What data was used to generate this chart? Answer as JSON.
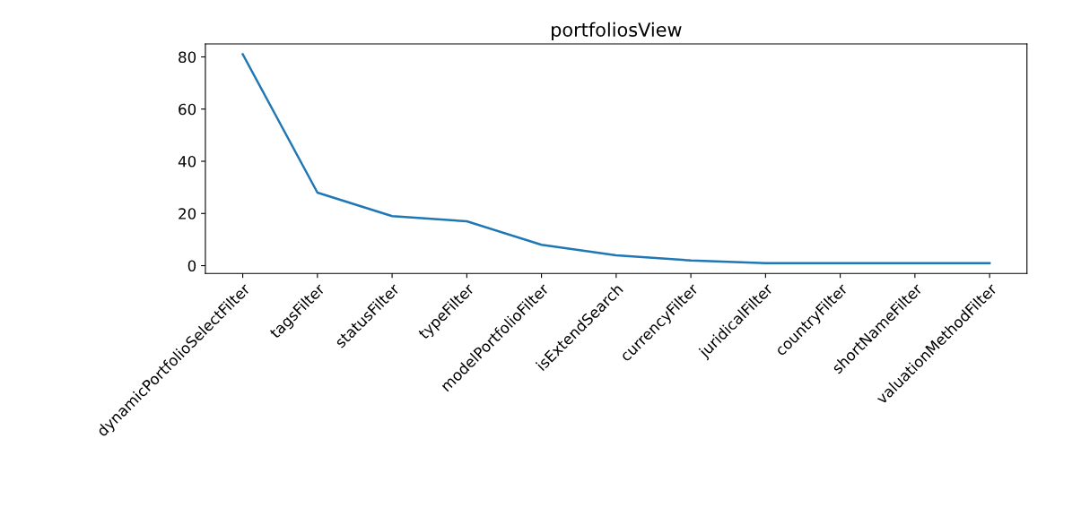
{
  "chart_data": {
    "type": "line",
    "title": "portfoliosView",
    "categories": [
      "dynamicPortfolioSelectFilter",
      "tagsFilter",
      "statusFilter",
      "typeFilter",
      "modelPortfolioFilter",
      "isExtendSearch",
      "currencyFilter",
      "juridicalFilter",
      "countryFilter",
      "shortNameFilter",
      "valuationMethodFilter"
    ],
    "series": [
      {
        "color": "#1f77b4",
        "values": [
          81,
          28,
          19,
          17,
          8,
          4,
          2,
          1,
          1,
          1,
          1
        ]
      }
    ],
    "ylim": [
      -3,
      85
    ],
    "yticks": [
      0,
      20,
      40,
      60,
      80
    ],
    "grid": false
  }
}
